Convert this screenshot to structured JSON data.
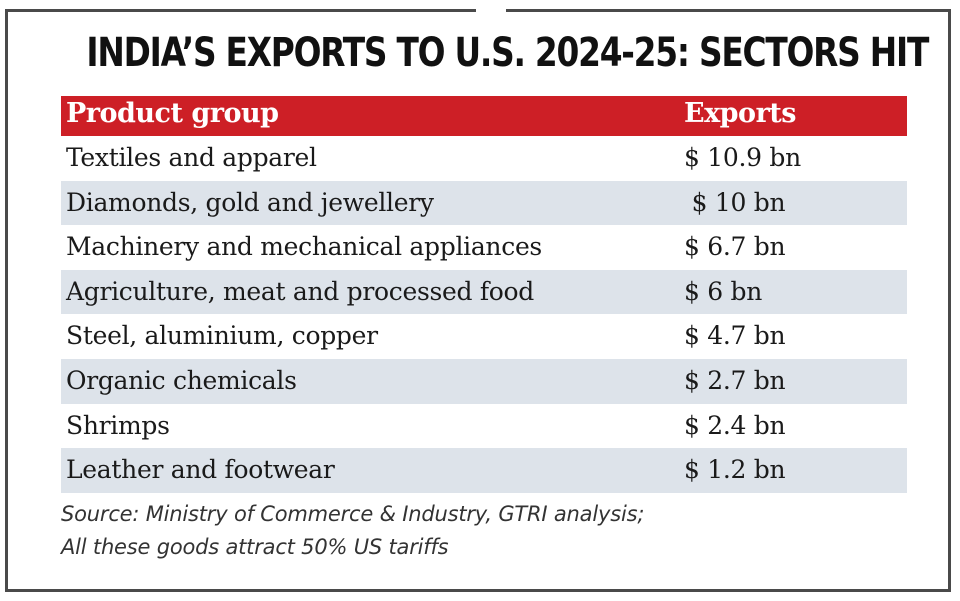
{
  "chart_data": {
    "type": "table",
    "title": "INDIA’S EXPORTS TO U.S. 2024-25: SECTORS HIT",
    "columns": [
      "Product group",
      "Exports"
    ],
    "rows": [
      {
        "product": "Textiles and apparel",
        "exports": "$ 10.9 bn",
        "value": 10.9
      },
      {
        "product": "Diamonds, gold and jewellery",
        "exports": " $ 10 bn",
        "value": 10
      },
      {
        "product": "Machinery and mechanical appliances",
        "exports": "$ 6.7 bn",
        "value": 6.7
      },
      {
        "product": "Agriculture, meat and processed food",
        "exports": "$ 6 bn",
        "value": 6
      },
      {
        "product": "Steel, aluminium, copper",
        "exports": "$ 4.7 bn",
        "value": 4.7
      },
      {
        "product": "Organic chemicals",
        "exports": "$ 2.7 bn",
        "value": 2.7
      },
      {
        "product": "Shrimps",
        "exports": "$ 2.4 bn",
        "value": 2.4
      },
      {
        "product": "Leather and footwear",
        "exports": "$ 1.2 bn",
        "value": 1.2
      }
    ],
    "source_line1": "Source:  Ministry of Commerce & Industry, GTRI analysis;",
    "source_line2": "All these goods attract 50% US tariffs",
    "colors": {
      "header_bg": "#cd1f26",
      "header_text": "#ffffff",
      "stripe": "#dde3ea",
      "text": "#1a1a1a"
    }
  }
}
